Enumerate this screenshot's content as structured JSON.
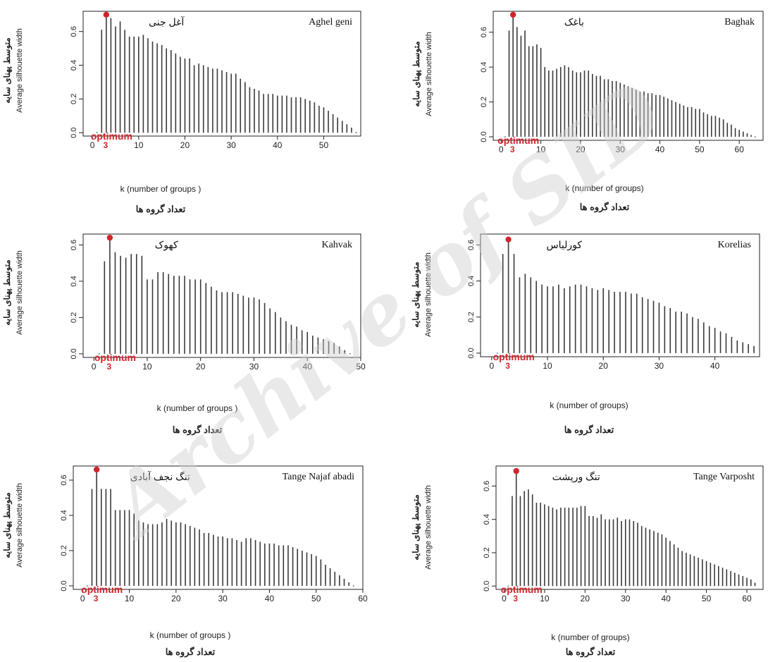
{
  "watermark": "Archive of SID",
  "colors": {
    "bar": "#3a3a3a",
    "optimum": "#d0262d",
    "axis": "#222222"
  },
  "common": {
    "ylabel_fa": "متوسط پهنای سایه",
    "ylabel_en": "Average silhouette width",
    "optimum_label": "optimum",
    "optimum_k": "3"
  },
  "chart_data": [
    {
      "type": "bar",
      "title": "Aghel geni",
      "title_fa": "آغل جنی",
      "xlabel": "k (number of groups )",
      "xlabel_fa": "تعداد گروه ها",
      "ylabel": "Average silhouette width",
      "xlim": [
        -2,
        58
      ],
      "ylim": [
        -0.02,
        0.72
      ],
      "xticks": [
        0,
        10,
        20,
        30,
        40,
        50
      ],
      "yticks": [
        0.0,
        0.2,
        0.4,
        0.6
      ],
      "optimum_k": 3,
      "k_start": 1,
      "values": [
        0.0,
        0.61,
        0.7,
        0.68,
        0.63,
        0.66,
        0.61,
        0.57,
        0.57,
        0.57,
        0.58,
        0.56,
        0.54,
        0.53,
        0.52,
        0.5,
        0.49,
        0.47,
        0.45,
        0.44,
        0.44,
        0.4,
        0.41,
        0.4,
        0.39,
        0.38,
        0.38,
        0.37,
        0.36,
        0.35,
        0.35,
        0.32,
        0.3,
        0.27,
        0.26,
        0.25,
        0.23,
        0.23,
        0.23,
        0.22,
        0.22,
        0.22,
        0.21,
        0.21,
        0.21,
        0.2,
        0.19,
        0.18,
        0.16,
        0.15,
        0.13,
        0.11,
        0.09,
        0.07,
        0.05,
        0.03,
        0.0
      ]
    },
    {
      "type": "bar",
      "title": "Baghak",
      "title_fa": "باغک",
      "xlabel": "k (number of groups)",
      "xlabel_fa": "تعداد گروه ها",
      "ylabel": "Average silhouette width",
      "xlim": [
        -2,
        66
      ],
      "ylim": [
        -0.02,
        0.72
      ],
      "xticks": [
        0,
        10,
        20,
        30,
        40,
        50,
        60
      ],
      "yticks": [
        0.0,
        0.2,
        0.4,
        0.6
      ],
      "optimum_k": 3,
      "k_start": 1,
      "values": [
        0.0,
        0.61,
        0.7,
        0.63,
        0.58,
        0.61,
        0.52,
        0.52,
        0.53,
        0.51,
        0.4,
        0.38,
        0.38,
        0.39,
        0.4,
        0.41,
        0.4,
        0.38,
        0.37,
        0.37,
        0.38,
        0.38,
        0.36,
        0.35,
        0.35,
        0.33,
        0.33,
        0.32,
        0.32,
        0.31,
        0.3,
        0.29,
        0.28,
        0.27,
        0.26,
        0.26,
        0.25,
        0.25,
        0.24,
        0.24,
        0.23,
        0.22,
        0.21,
        0.2,
        0.19,
        0.18,
        0.17,
        0.17,
        0.16,
        0.16,
        0.14,
        0.13,
        0.12,
        0.12,
        0.11,
        0.1,
        0.08,
        0.07,
        0.05,
        0.04,
        0.03,
        0.02,
        0.01,
        0.0
      ]
    },
    {
      "type": "bar",
      "title": "Kahvak",
      "title_fa": "کهوک",
      "xlabel": "k (number of groups )",
      "xlabel_fa": "تعداد گروه ها",
      "ylabel": "Average silhouette width",
      "xlim": [
        -2,
        50
      ],
      "ylim": [
        -0.02,
        0.66
      ],
      "xticks": [
        0,
        10,
        20,
        30,
        40,
        50
      ],
      "yticks": [
        0.0,
        0.2,
        0.4,
        0.6
      ],
      "optimum_k": 3,
      "k_start": 1,
      "values": [
        0.0,
        0.51,
        0.64,
        0.56,
        0.54,
        0.53,
        0.55,
        0.55,
        0.54,
        0.41,
        0.41,
        0.45,
        0.45,
        0.44,
        0.43,
        0.43,
        0.43,
        0.41,
        0.41,
        0.41,
        0.39,
        0.37,
        0.35,
        0.34,
        0.34,
        0.34,
        0.33,
        0.32,
        0.31,
        0.31,
        0.3,
        0.28,
        0.25,
        0.23,
        0.2,
        0.18,
        0.16,
        0.15,
        0.13,
        0.12,
        0.1,
        0.09,
        0.08,
        0.07,
        0.06,
        0.04,
        0.02,
        0.0
      ]
    },
    {
      "type": "bar",
      "title": "Korelias",
      "title_fa": "کورلیاس",
      "xlabel": "k (number of groups)",
      "xlabel_fa": "تعداد گروه ها",
      "ylabel": "Average silhouette width",
      "xlim": [
        -2,
        48
      ],
      "ylim": [
        -0.02,
        0.66
      ],
      "xticks": [
        0,
        10,
        20,
        30,
        40
      ],
      "yticks": [
        0.0,
        0.2,
        0.4,
        0.6
      ],
      "optimum_k": 3,
      "k_start": 1,
      "values": [
        0.0,
        0.55,
        0.63,
        0.55,
        0.42,
        0.44,
        0.42,
        0.4,
        0.38,
        0.37,
        0.37,
        0.38,
        0.36,
        0.37,
        0.38,
        0.38,
        0.37,
        0.36,
        0.35,
        0.36,
        0.35,
        0.34,
        0.34,
        0.34,
        0.33,
        0.33,
        0.31,
        0.3,
        0.29,
        0.28,
        0.26,
        0.25,
        0.23,
        0.23,
        0.22,
        0.2,
        0.19,
        0.17,
        0.15,
        0.14,
        0.12,
        0.11,
        0.09,
        0.07,
        0.06,
        0.05,
        0.04
      ]
    },
    {
      "type": "bar",
      "title": "Tange Najaf abadi",
      "title_fa": "تنگ نجف آبادی",
      "xlabel": "k (number of groups )",
      "xlabel_fa": "تعداد گروه ها",
      "ylabel": "Average silhouette width",
      "xlim": [
        -2,
        60
      ],
      "ylim": [
        -0.02,
        0.68
      ],
      "xticks": [
        0,
        10,
        20,
        30,
        40,
        50,
        60
      ],
      "yticks": [
        0.0,
        0.2,
        0.4,
        0.6
      ],
      "optimum_k": 3,
      "k_start": 1,
      "values": [
        0.0,
        0.55,
        0.66,
        0.55,
        0.55,
        0.55,
        0.43,
        0.43,
        0.43,
        0.43,
        0.41,
        0.37,
        0.36,
        0.35,
        0.35,
        0.35,
        0.36,
        0.38,
        0.37,
        0.36,
        0.36,
        0.35,
        0.34,
        0.33,
        0.32,
        0.3,
        0.3,
        0.29,
        0.28,
        0.28,
        0.27,
        0.27,
        0.26,
        0.25,
        0.27,
        0.27,
        0.26,
        0.25,
        0.24,
        0.24,
        0.24,
        0.23,
        0.23,
        0.23,
        0.22,
        0.21,
        0.2,
        0.19,
        0.18,
        0.17,
        0.15,
        0.12,
        0.1,
        0.08,
        0.06,
        0.04,
        0.02,
        0.0
      ]
    },
    {
      "type": "bar",
      "title": "Tange Varposht",
      "title_fa": "تنگ ورپشت",
      "xlabel": "k (number of groups)",
      "xlabel_fa": "تعداد گروه ها",
      "ylabel": "Average silhouette width",
      "xlim": [
        -2,
        64
      ],
      "ylim": [
        -0.02,
        0.72
      ],
      "xticks": [
        0,
        10,
        20,
        30,
        40,
        50,
        60
      ],
      "yticks": [
        0.0,
        0.2,
        0.4,
        0.6
      ],
      "optimum_k": 3,
      "k_start": 1,
      "values": [
        0.0,
        0.54,
        0.69,
        0.54,
        0.57,
        0.58,
        0.55,
        0.5,
        0.5,
        0.49,
        0.48,
        0.47,
        0.46,
        0.47,
        0.47,
        0.47,
        0.47,
        0.47,
        0.48,
        0.48,
        0.42,
        0.42,
        0.41,
        0.43,
        0.4,
        0.4,
        0.4,
        0.41,
        0.39,
        0.4,
        0.4,
        0.39,
        0.38,
        0.36,
        0.35,
        0.34,
        0.33,
        0.32,
        0.31,
        0.29,
        0.27,
        0.25,
        0.23,
        0.21,
        0.2,
        0.19,
        0.18,
        0.17,
        0.16,
        0.15,
        0.14,
        0.13,
        0.12,
        0.11,
        0.1,
        0.09,
        0.08,
        0.07,
        0.06,
        0.05,
        0.04,
        0.02
      ]
    }
  ]
}
